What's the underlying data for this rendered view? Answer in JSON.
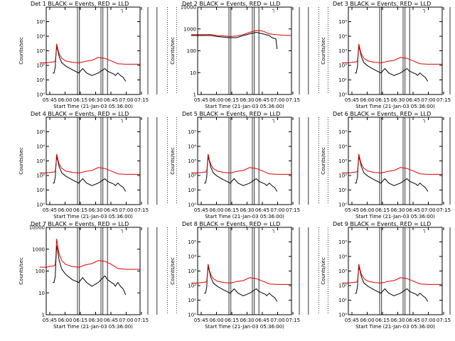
{
  "shared": {
    "xlabel": "Start Time (21-Jan-03 05:36:00)",
    "ylabel": "Counts/sec",
    "x_ticks": [
      "05:45",
      "06:00",
      "06:15",
      "06:30",
      "06:45",
      "07:00",
      "07:15"
    ],
    "x_range_min": [
      5,
      77
    ],
    "vlines_solid_min": [
      29,
      30.5,
      47,
      48.5,
      52,
      83,
      90
    ],
    "vlines_dotted_min": [
      98,
      105
    ],
    "series_colors": {
      "events": "#000000",
      "lld": "#dd0000"
    },
    "legend_glyph": "┐"
  },
  "chart_data": [
    {
      "type": "line",
      "title": "Det 1 BLACK = Events, RED = LLD",
      "y_scale": "log",
      "ylim": [
        1,
        1000000
      ],
      "y_ticks": [
        "10⁰",
        "10¹",
        "10²",
        "10³",
        "10⁴",
        "10⁵"
      ],
      "series": [
        {
          "name": "Events",
          "color": "#000000",
          "x": [
            10,
            11,
            12,
            12.3,
            13,
            14,
            15,
            17,
            20,
            25,
            30,
            33,
            36,
            40,
            45,
            50,
            52,
            55,
            57,
            58,
            60,
            62,
            64,
            66
          ],
          "y": [
            30,
            30,
            80,
            300,
            2000,
            1000,
            400,
            150,
            90,
            50,
            30,
            60,
            30,
            20,
            30,
            60,
            40,
            30,
            25,
            20,
            30,
            20,
            15,
            8
          ]
        },
        {
          "name": "LLD",
          "color": "#dd0000",
          "x": [
            0,
            5,
            10,
            11,
            12,
            12.3,
            13,
            14,
            15,
            17,
            20,
            25,
            30,
            33,
            35,
            40,
            45,
            50,
            55,
            60,
            66,
            70,
            77
          ],
          "y": [
            150,
            150,
            170,
            170,
            200,
            400,
            3000,
            1200,
            600,
            300,
            200,
            160,
            150,
            170,
            190,
            220,
            350,
            300,
            200,
            130,
            120,
            120,
            120
          ]
        }
      ]
    },
    {
      "type": "line",
      "title": "Det 2 BLACK = Events, RED = LLD",
      "y_scale": "log",
      "ylim": [
        1,
        10000
      ],
      "y_ticks": [
        "1",
        "10",
        "100",
        "1000",
        "10000"
      ],
      "series": [
        {
          "name": "Events",
          "color": "#000000",
          "x": [
            0,
            5,
            10,
            15,
            20,
            25,
            30,
            35,
            40,
            45,
            50,
            55,
            60,
            62,
            65,
            66
          ],
          "y": [
            500,
            500,
            500,
            500,
            450,
            420,
            400,
            400,
            500,
            600,
            700,
            600,
            500,
            400,
            350,
            120
          ]
        },
        {
          "name": "LLD",
          "color": "#dd0000",
          "x": [
            0,
            5,
            10,
            15,
            20,
            25,
            30,
            35,
            40,
            45,
            50,
            55,
            60,
            65,
            70,
            77
          ],
          "y": [
            550,
            550,
            550,
            560,
            500,
            480,
            450,
            480,
            550,
            700,
            850,
            800,
            600,
            550,
            520,
            500
          ]
        }
      ]
    },
    {
      "type": "line",
      "title": "Det 3 BLACK = Events, RED = LLD",
      "y_scale": "log",
      "ylim": [
        1,
        1000000
      ],
      "y_ticks": [
        "10⁰",
        "10¹",
        "10²",
        "10³",
        "10⁴",
        "10⁵"
      ],
      "series": [
        {
          "name": "Events",
          "color": "#000000",
          "x": [
            10,
            11,
            12,
            12.3,
            13,
            14,
            15,
            17,
            20,
            25,
            30,
            33,
            36,
            40,
            45,
            50,
            52,
            55,
            57,
            58,
            60,
            62,
            64,
            66
          ],
          "y": [
            30,
            30,
            80,
            300,
            2000,
            1000,
            400,
            150,
            90,
            50,
            30,
            60,
            30,
            20,
            30,
            60,
            40,
            30,
            25,
            20,
            30,
            20,
            15,
            8
          ]
        },
        {
          "name": "LLD",
          "color": "#dd0000",
          "x": [
            0,
            5,
            10,
            11,
            12,
            12.3,
            13,
            14,
            15,
            17,
            20,
            25,
            30,
            33,
            35,
            40,
            45,
            50,
            55,
            60,
            66,
            70,
            77
          ],
          "y": [
            150,
            150,
            170,
            170,
            200,
            400,
            3000,
            1200,
            600,
            300,
            200,
            160,
            150,
            170,
            190,
            220,
            350,
            300,
            200,
            130,
            120,
            120,
            120
          ]
        }
      ]
    },
    {
      "type": "line",
      "title": "Det 4 BLACK = Events, RED = LLD",
      "y_scale": "log",
      "ylim": [
        1,
        1000000
      ],
      "y_ticks": [
        "10⁰",
        "10¹",
        "10²",
        "10³",
        "10⁴",
        "10⁵"
      ],
      "series": [
        {
          "name": "Events",
          "color": "#000000",
          "x": [
            10,
            11,
            12,
            12.3,
            13,
            14,
            15,
            17,
            20,
            25,
            30,
            33,
            36,
            40,
            45,
            50,
            52,
            55,
            57,
            58,
            60,
            62,
            64,
            66
          ],
          "y": [
            30,
            30,
            80,
            300,
            2000,
            1000,
            400,
            150,
            90,
            50,
            30,
            60,
            30,
            20,
            30,
            60,
            40,
            30,
            25,
            20,
            30,
            20,
            15,
            8
          ]
        },
        {
          "name": "LLD",
          "color": "#dd0000",
          "x": [
            0,
            5,
            10,
            11,
            12,
            12.3,
            13,
            14,
            15,
            17,
            20,
            25,
            30,
            33,
            35,
            40,
            45,
            50,
            55,
            60,
            66,
            70,
            77
          ],
          "y": [
            150,
            150,
            170,
            170,
            200,
            400,
            3000,
            1200,
            600,
            300,
            200,
            160,
            150,
            170,
            190,
            220,
            350,
            300,
            200,
            130,
            120,
            120,
            120
          ]
        }
      ]
    },
    {
      "type": "line",
      "title": "Det 5 BLACK = Events, RED = LLD",
      "y_scale": "log",
      "ylim": [
        1,
        1000000
      ],
      "y_ticks": [
        "10⁰",
        "10¹",
        "10²",
        "10³",
        "10⁴",
        "10⁵"
      ],
      "series": [
        {
          "name": "Events",
          "color": "#000000",
          "x": [
            10,
            11,
            12,
            12.3,
            13,
            14,
            15,
            17,
            20,
            25,
            30,
            33,
            36,
            40,
            45,
            50,
            52,
            55,
            57,
            58,
            60,
            62,
            64,
            66
          ],
          "y": [
            30,
            30,
            80,
            300,
            2000,
            1000,
            400,
            150,
            90,
            50,
            30,
            60,
            30,
            20,
            30,
            60,
            40,
            30,
            25,
            20,
            30,
            20,
            15,
            8
          ]
        },
        {
          "name": "LLD",
          "color": "#dd0000",
          "x": [
            0,
            5,
            10,
            11,
            12,
            12.3,
            13,
            14,
            15,
            17,
            20,
            25,
            30,
            33,
            35,
            40,
            45,
            50,
            55,
            60,
            66,
            70,
            77
          ],
          "y": [
            150,
            150,
            170,
            170,
            200,
            400,
            3000,
            1200,
            600,
            300,
            200,
            160,
            150,
            170,
            190,
            220,
            350,
            300,
            200,
            130,
            120,
            120,
            120
          ]
        }
      ]
    },
    {
      "type": "line",
      "title": "Det 6 BLACK = Events, RED = LLD",
      "y_scale": "log",
      "ylim": [
        1,
        1000000
      ],
      "y_ticks": [
        "10⁰",
        "10¹",
        "10²",
        "10³",
        "10⁴",
        "10⁵"
      ],
      "series": [
        {
          "name": "Events",
          "color": "#000000",
          "x": [
            10,
            11,
            12,
            12.3,
            13,
            14,
            15,
            17,
            20,
            25,
            30,
            33,
            36,
            40,
            45,
            50,
            52,
            55,
            57,
            58,
            60,
            62,
            64,
            66
          ],
          "y": [
            30,
            30,
            80,
            300,
            2000,
            1000,
            400,
            150,
            90,
            50,
            30,
            60,
            30,
            20,
            30,
            60,
            40,
            30,
            25,
            20,
            30,
            20,
            15,
            8
          ]
        },
        {
          "name": "LLD",
          "color": "#dd0000",
          "x": [
            0,
            5,
            10,
            11,
            12,
            12.3,
            13,
            14,
            15,
            17,
            20,
            25,
            30,
            33,
            35,
            40,
            45,
            50,
            55,
            60,
            66,
            70,
            77
          ],
          "y": [
            150,
            150,
            170,
            170,
            200,
            400,
            3000,
            1200,
            600,
            300,
            200,
            160,
            150,
            170,
            190,
            220,
            350,
            300,
            200,
            130,
            120,
            120,
            120
          ]
        }
      ]
    },
    {
      "type": "line",
      "title": "Det 7 BLACK = Events, RED = LLD",
      "y_scale": "log",
      "ylim": [
        1,
        10000
      ],
      "y_ticks": [
        "1",
        "10",
        "100",
        "1000",
        "10000"
      ],
      "series": [
        {
          "name": "Events",
          "color": "#000000",
          "x": [
            10,
            11,
            12,
            12.3,
            13,
            14,
            15,
            17,
            20,
            25,
            30,
            33,
            36,
            40,
            45,
            50,
            52,
            55,
            57,
            58,
            60,
            62,
            64,
            66
          ],
          "y": [
            30,
            30,
            60,
            200,
            1500,
            700,
            300,
            120,
            70,
            40,
            30,
            50,
            30,
            20,
            30,
            60,
            40,
            30,
            25,
            20,
            30,
            20,
            15,
            8
          ]
        },
        {
          "name": "LLD",
          "color": "#dd0000",
          "x": [
            0,
            5,
            10,
            11,
            12,
            12.3,
            13,
            14,
            15,
            17,
            20,
            25,
            30,
            33,
            35,
            40,
            45,
            50,
            55,
            60,
            66,
            70,
            77
          ],
          "y": [
            150,
            150,
            170,
            170,
            200,
            400,
            3000,
            1200,
            600,
            300,
            200,
            160,
            150,
            170,
            190,
            220,
            300,
            280,
            200,
            130,
            120,
            120,
            120
          ]
        }
      ]
    },
    {
      "type": "line",
      "title": "Det 8 BLACK = Events, RED = LLD",
      "y_scale": "log",
      "ylim": [
        1,
        1000000
      ],
      "y_ticks": [
        "10⁰",
        "10¹",
        "10²",
        "10³",
        "10⁴",
        "10⁵"
      ],
      "series": [
        {
          "name": "Events",
          "color": "#000000",
          "x": [
            10,
            11,
            12,
            12.3,
            13,
            14,
            15,
            17,
            20,
            25,
            30,
            33,
            36,
            40,
            45,
            50,
            52,
            55,
            57,
            58,
            60,
            62,
            64,
            66
          ],
          "y": [
            30,
            30,
            80,
            300,
            2000,
            1000,
            400,
            150,
            90,
            50,
            30,
            60,
            30,
            20,
            30,
            60,
            40,
            30,
            25,
            20,
            30,
            20,
            15,
            8
          ]
        },
        {
          "name": "LLD",
          "color": "#dd0000",
          "x": [
            0,
            5,
            10,
            11,
            12,
            12.3,
            13,
            14,
            15,
            17,
            20,
            25,
            30,
            33,
            35,
            40,
            45,
            50,
            55,
            60,
            66,
            70,
            77
          ],
          "y": [
            150,
            150,
            170,
            170,
            200,
            400,
            3000,
            1200,
            600,
            300,
            200,
            160,
            150,
            170,
            190,
            220,
            350,
            300,
            200,
            130,
            120,
            120,
            120
          ]
        }
      ]
    },
    {
      "type": "line",
      "title": "Det 9 BLACK = Events, RED = LLD",
      "y_scale": "log",
      "ylim": [
        1,
        1000000
      ],
      "y_ticks": [
        "10⁰",
        "10¹",
        "10²",
        "10³",
        "10⁴",
        "10⁵"
      ],
      "series": [
        {
          "name": "Events",
          "color": "#000000",
          "x": [
            10,
            11,
            12,
            12.3,
            13,
            14,
            15,
            17,
            20,
            25,
            30,
            33,
            36,
            40,
            45,
            50,
            52,
            55,
            57,
            58,
            60,
            62,
            64,
            66
          ],
          "y": [
            30,
            30,
            80,
            300,
            2000,
            1000,
            400,
            150,
            90,
            50,
            30,
            60,
            30,
            20,
            30,
            60,
            40,
            30,
            25,
            20,
            30,
            20,
            15,
            8
          ]
        },
        {
          "name": "LLD",
          "color": "#dd0000",
          "x": [
            0,
            5,
            10,
            11,
            12,
            12.3,
            13,
            14,
            15,
            17,
            20,
            25,
            30,
            33,
            35,
            40,
            45,
            50,
            55,
            60,
            66,
            70,
            77
          ],
          "y": [
            150,
            150,
            170,
            170,
            200,
            400,
            3000,
            1200,
            600,
            300,
            200,
            160,
            150,
            170,
            190,
            220,
            350,
            300,
            200,
            130,
            120,
            120,
            120
          ]
        }
      ]
    }
  ]
}
